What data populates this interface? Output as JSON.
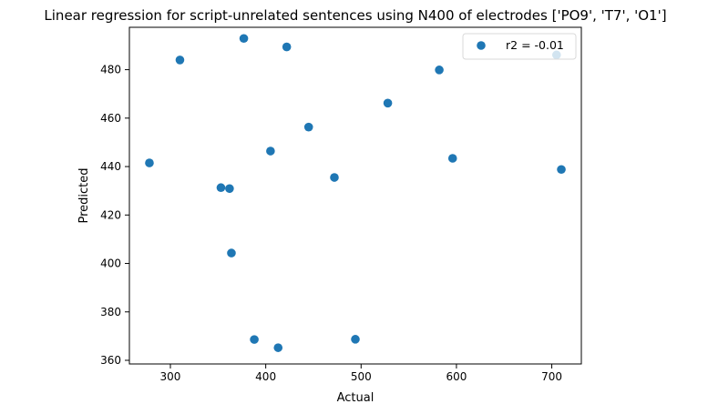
{
  "chart_data": {
    "type": "scatter",
    "title": "Linear regression for script-unrelated sentences using N400 of electrodes ['PO9', 'T7', 'O1']",
    "xlabel": "Actual",
    "ylabel": "Predicted",
    "xlim": [
      257,
      731
    ],
    "ylim": [
      358.5,
      497.5
    ],
    "xticks": [
      300,
      400,
      500,
      600,
      700
    ],
    "yticks": [
      360,
      380,
      400,
      420,
      440,
      460,
      480
    ],
    "grid": false,
    "legend_position": "top-right",
    "marker_color": "#1f77b4",
    "series": [
      {
        "name": "r2 = -0.01",
        "points": [
          {
            "x": 278,
            "y": 441.5
          },
          {
            "x": 310,
            "y": 484
          },
          {
            "x": 353,
            "y": 431.3
          },
          {
            "x": 362,
            "y": 430.9
          },
          {
            "x": 364,
            "y": 404.3
          },
          {
            "x": 377,
            "y": 492.9
          },
          {
            "x": 388,
            "y": 368.6
          },
          {
            "x": 405,
            "y": 446.4
          },
          {
            "x": 413,
            "y": 365.2
          },
          {
            "x": 422,
            "y": 489.4
          },
          {
            "x": 445,
            "y": 456.3
          },
          {
            "x": 472,
            "y": 435.5
          },
          {
            "x": 494,
            "y": 368.7
          },
          {
            "x": 528,
            "y": 466.2
          },
          {
            "x": 582,
            "y": 479.9
          },
          {
            "x": 596,
            "y": 443.4
          },
          {
            "x": 705,
            "y": 486.1
          },
          {
            "x": 710,
            "y": 438.8
          }
        ]
      }
    ]
  }
}
